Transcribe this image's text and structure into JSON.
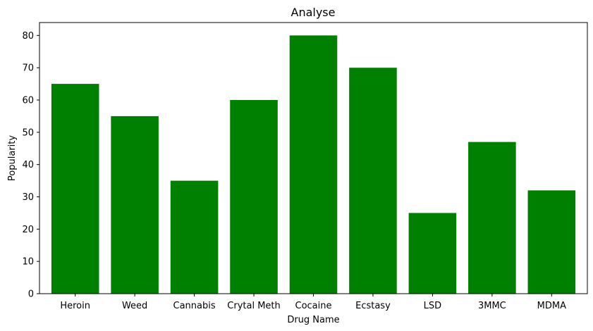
{
  "chart_data": {
    "type": "bar",
    "title": "Analyse",
    "xlabel": "Drug Name",
    "ylabel": "Popularity",
    "categories": [
      "Heroin",
      "Weed",
      "Cannabis",
      "Crytal Meth",
      "Cocaine",
      "Ecstasy",
      "LSD",
      "3MMC",
      "MDMA"
    ],
    "values": [
      65,
      55,
      35,
      60,
      80,
      70,
      25,
      47,
      32
    ],
    "ylim": [
      0,
      84
    ],
    "yticks": [
      0,
      10,
      20,
      30,
      40,
      50,
      60,
      70,
      80
    ],
    "bar_color": "#008000",
    "grid": false,
    "legend": false
  }
}
